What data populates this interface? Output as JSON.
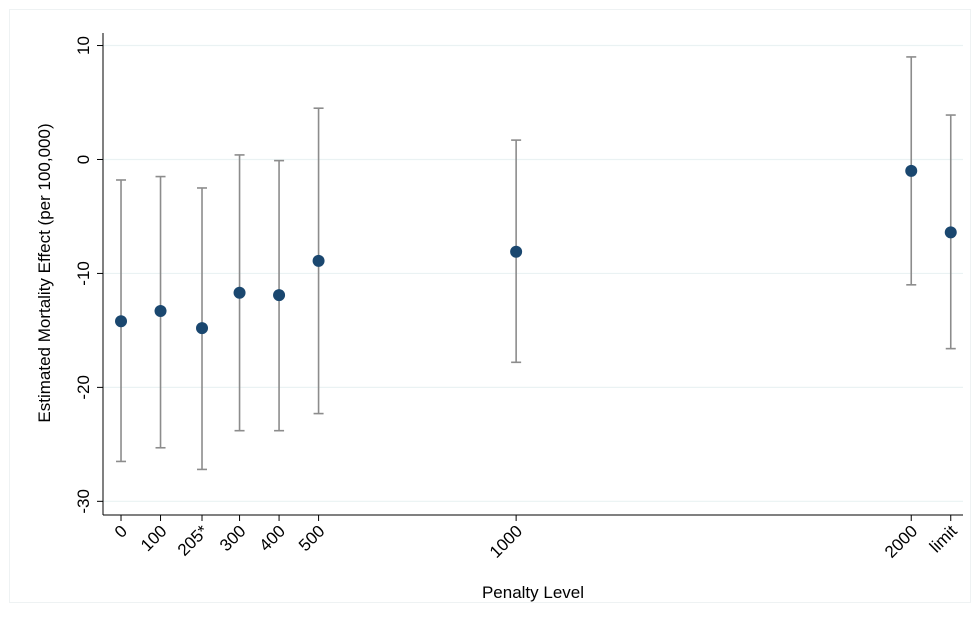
{
  "chart_data": {
    "type": "errorbar",
    "xlabel": "Penalty Level",
    "ylabel": "Estimated Mortality Effect (per 100,000)",
    "x": [
      0,
      100,
      205,
      300,
      400,
      500,
      1000,
      2000,
      2100
    ],
    "values": [
      -14.2,
      -13.3,
      -14.8,
      -11.7,
      -11.9,
      -8.9,
      -8.1,
      -1.0,
      -6.4
    ],
    "ci_low": [
      -26.5,
      -25.3,
      -27.2,
      -23.8,
      -23.8,
      -22.3,
      -17.8,
      -11.0,
      -16.6
    ],
    "ci_high": [
      -1.8,
      -1.5,
      -2.5,
      0.4,
      -0.1,
      4.5,
      1.7,
      9.0,
      3.9
    ],
    "color": "#1a476f",
    "error_color": "#8c8c8c",
    "xlim": [
      -45.6,
      2131
    ],
    "xticks": [
      0,
      100,
      {
        "value": 205,
        "label": "205*"
      },
      300,
      400,
      500,
      1000,
      2000,
      {
        "value": 2100,
        "label": "limit"
      }
    ],
    "ylim": [
      -31.2,
      11.1
    ],
    "yticks": [
      10,
      0,
      -10,
      -20,
      -30
    ],
    "grid": true
  }
}
